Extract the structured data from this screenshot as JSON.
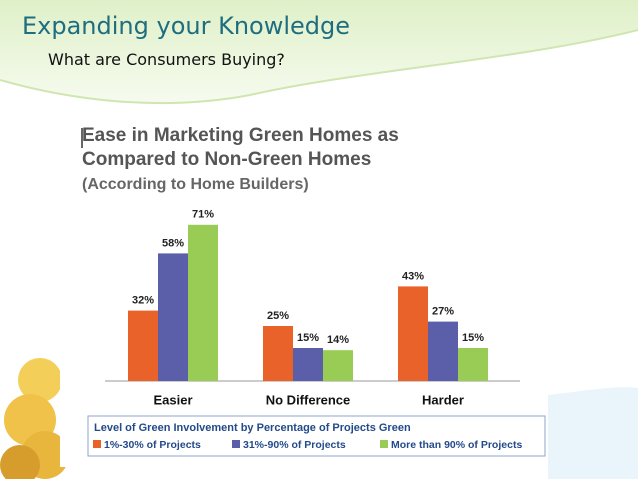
{
  "slide": {
    "title": "Expanding your Knowledge",
    "subtitle": "What are Consumers Buying?"
  },
  "chart_data": {
    "type": "bar",
    "title": "Ease in Marketing Green Homes as Compared to Non-Green Homes",
    "subtitle": "(According to Home Builders)",
    "categories": [
      "Easier",
      "No Difference",
      "Harder"
    ],
    "legend_title": "Level of Green Involvement by Percentage of Projects Green",
    "series": [
      {
        "name": "1%-30% of Projects",
        "color": "#e8622a",
        "values": [
          32,
          25,
          43
        ],
        "value_labels": [
          "32%",
          "25%",
          "43%"
        ]
      },
      {
        "name": "31%-90% of Projects",
        "color": "#5b5ea8",
        "values": [
          58,
          15,
          27
        ],
        "value_labels": [
          "58%",
          "15%",
          "27%"
        ]
      },
      {
        "name": "More than 90% of Projects",
        "color": "#99cc55",
        "values": [
          71,
          14,
          15
        ],
        "value_labels": [
          "71%",
          "14%",
          "15%"
        ]
      }
    ]
  }
}
